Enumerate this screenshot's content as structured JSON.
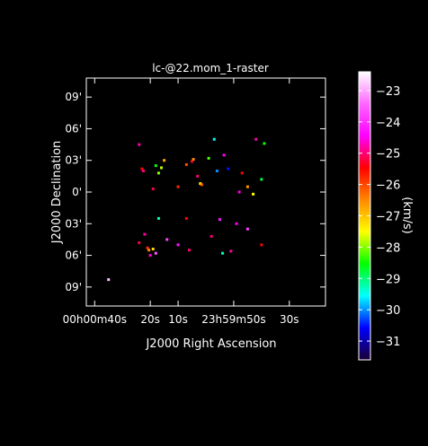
{
  "chart_data": {
    "type": "scatter",
    "title": "lc-@22.mom_1-raster",
    "xlabel": "J2000 Right Ascension",
    "ylabel": "J2000 Declination",
    "x_ticks": [
      {
        "label": "00h00m40s",
        "value": 40
      },
      {
        "label": "20s",
        "value": 20
      },
      {
        "label": "10s",
        "value": 10
      },
      {
        "label": "23h59m50s",
        "value": -10
      },
      {
        "label": "30s",
        "value": -30
      }
    ],
    "y_ticks": [
      {
        "label": "09'",
        "value": 9
      },
      {
        "label": "06'",
        "value": 6
      },
      {
        "label": "03'",
        "value": 3
      },
      {
        "label": "0'",
        "value": 0
      },
      {
        "label": "03'",
        "value": -3
      },
      {
        "label": "06'",
        "value": -6
      },
      {
        "label": "09'",
        "value": -9
      }
    ],
    "xlim": [
      43,
      -43
    ],
    "ylim": [
      -10.8,
      10.8
    ],
    "colorbar": {
      "label": "(km/s)",
      "range": [
        -31.6,
        -22.4
      ],
      "ticks": [
        -23,
        -24,
        -25,
        -26,
        -27,
        -28,
        -29,
        -30,
        -31
      ],
      "stops": [
        "#1a0033",
        "#0000ff",
        "#00ffff",
        "#00ff00",
        "#ffff00",
        "#ff8800",
        "#ff0000",
        "#ff00ff",
        "#ff66ff",
        "#ffffff"
      ]
    },
    "series": [
      {
        "points": [
          {
            "x": 24,
            "y": 4.5,
            "v": -24.8
          },
          {
            "x": 23,
            "y": 2.2,
            "v": -25.5
          },
          {
            "x": 22.5,
            "y": 2.0,
            "v": -25.0
          },
          {
            "x": 18,
            "y": 2.5,
            "v": -28.5
          },
          {
            "x": 16,
            "y": 2.3,
            "v": -27.8
          },
          {
            "x": 17,
            "y": 1.8,
            "v": -28.0
          },
          {
            "x": 15,
            "y": 3.0,
            "v": -26.8
          },
          {
            "x": 19,
            "y": 0.3,
            "v": -25.2
          },
          {
            "x": 7,
            "y": 2.6,
            "v": -26.0
          },
          {
            "x": 5,
            "y": 2.9,
            "v": -25.3
          },
          {
            "x": 4.5,
            "y": 3.1,
            "v": -26.5
          },
          {
            "x": 3,
            "y": 1.5,
            "v": -25.0
          },
          {
            "x": 2,
            "y": 0.8,
            "v": -27.5
          },
          {
            "x": 1.5,
            "y": 0.7,
            "v": -26.2
          },
          {
            "x": -1,
            "y": 3.2,
            "v": -28.2
          },
          {
            "x": -3,
            "y": 5.0,
            "v": -29.5
          },
          {
            "x": -4,
            "y": 2.0,
            "v": -30.0
          },
          {
            "x": -6.5,
            "y": 3.5,
            "v": -24.5
          },
          {
            "x": -8,
            "y": 2.2,
            "v": -30.5
          },
          {
            "x": -13,
            "y": 1.8,
            "v": -25.5
          },
          {
            "x": -15,
            "y": 0.5,
            "v": -26.6
          },
          {
            "x": -18,
            "y": 5.0,
            "v": -24.8
          },
          {
            "x": -21,
            "y": 4.6,
            "v": -28.5
          },
          {
            "x": -20,
            "y": 1.2,
            "v": -28.8
          },
          {
            "x": -17,
            "y": -0.2,
            "v": -27.5
          },
          {
            "x": -12,
            "y": 0.0,
            "v": -24.6
          },
          {
            "x": 10,
            "y": 0.5,
            "v": -25.8
          },
          {
            "x": 17,
            "y": -2.5,
            "v": -29.2
          },
          {
            "x": 22,
            "y": -4.0,
            "v": -24.8
          },
          {
            "x": 14,
            "y": -4.5,
            "v": -23.8
          },
          {
            "x": 7,
            "y": -2.5,
            "v": -25.5
          },
          {
            "x": -5,
            "y": -2.6,
            "v": -24.3
          },
          {
            "x": -2,
            "y": -4.2,
            "v": -25.0
          },
          {
            "x": -11,
            "y": -3.0,
            "v": -24.5
          },
          {
            "x": -15,
            "y": -3.5,
            "v": -23.8
          },
          {
            "x": -9,
            "y": -5.6,
            "v": -24.8
          },
          {
            "x": -6,
            "y": -5.8,
            "v": -29.3
          },
          {
            "x": -20,
            "y": -5.0,
            "v": -25.5
          },
          {
            "x": 10,
            "y": -5.0,
            "v": -24.2
          },
          {
            "x": 6,
            "y": -5.5,
            "v": -25.0
          },
          {
            "x": 21,
            "y": -5.3,
            "v": -25.8
          },
          {
            "x": 20.5,
            "y": -5.5,
            "v": -26.5
          },
          {
            "x": 19,
            "y": -5.4,
            "v": -27.2
          },
          {
            "x": 20,
            "y": -6.0,
            "v": -24.6
          },
          {
            "x": 18,
            "y": -5.8,
            "v": -23.5
          },
          {
            "x": 24,
            "y": -4.8,
            "v": -25.2
          },
          {
            "x": 35,
            "y": -8.3,
            "v": -22.8
          }
        ]
      }
    ]
  }
}
